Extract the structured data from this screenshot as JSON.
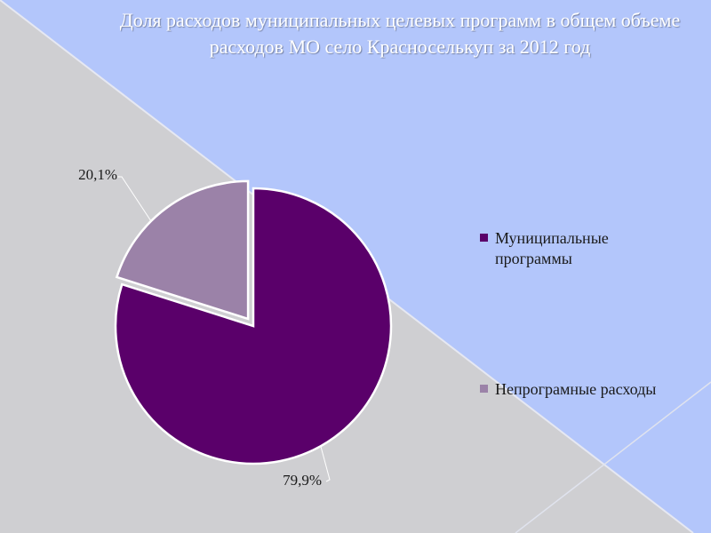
{
  "title": "Доля расходов  муниципальных  целевых программ в общем объеме расходов МО село Красноселькуп за 2012 год",
  "colors": {
    "background_light": "#cfcfd2",
    "background_accent": "#b3c6fb",
    "title_text": "#ffffff"
  },
  "chart_data": {
    "type": "pie",
    "title": "Доля расходов  муниципальных  целевых программ в общем объеме расходов МО село Красноселькуп за 2012 год",
    "legend_position": "right",
    "slices": [
      {
        "name": "Муниципальные программы",
        "value": 79.9,
        "label": "79,9%",
        "color": "#5a006a",
        "exploded": false
      },
      {
        "name": "Непрограмные расходы",
        "value": 20.1,
        "label": "20,1%",
        "color": "#9b82a8",
        "exploded": true
      }
    ]
  }
}
